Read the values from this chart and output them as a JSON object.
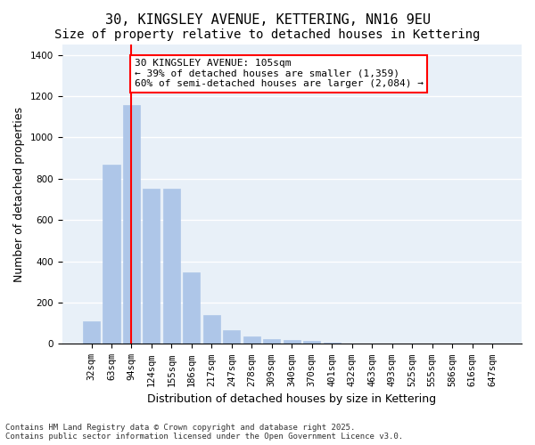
{
  "title": "30, KINGSLEY AVENUE, KETTERING, NN16 9EU",
  "subtitle": "Size of property relative to detached houses in Kettering",
  "xlabel": "Distribution of detached houses by size in Kettering",
  "ylabel": "Number of detached properties",
  "categories": [
    "32sqm",
    "63sqm",
    "94sqm",
    "124sqm",
    "155sqm",
    "186sqm",
    "217sqm",
    "247sqm",
    "278sqm",
    "309sqm",
    "340sqm",
    "370sqm",
    "401sqm",
    "432sqm",
    "463sqm",
    "493sqm",
    "525sqm",
    "555sqm",
    "586sqm",
    "616sqm",
    "647sqm"
  ],
  "values": [
    110,
    870,
    1155,
    750,
    750,
    345,
    140,
    65,
    35,
    25,
    20,
    15,
    5,
    0,
    0,
    0,
    0,
    0,
    0,
    0,
    0
  ],
  "bar_color": "#aec6e8",
  "highlight_bar_index": 2,
  "highlight_bar_color": "#aec6e8",
  "vline_x": 2,
  "vline_color": "red",
  "annotation_text": "30 KINGSLEY AVENUE: 105sqm\n← 39% of detached houses are smaller (1,359)\n60% of semi-detached houses are larger (2,084) →",
  "annotation_box_color": "white",
  "annotation_box_edgecolor": "red",
  "ylim": [
    0,
    1450
  ],
  "background_color": "#e8f0f8",
  "grid_color": "white",
  "footer": "Contains HM Land Registry data © Crown copyright and database right 2025.\nContains public sector information licensed under the Open Government Licence v3.0.",
  "title_fontsize": 11,
  "subtitle_fontsize": 10,
  "axis_label_fontsize": 9,
  "tick_fontsize": 7.5,
  "annotation_fontsize": 8
}
